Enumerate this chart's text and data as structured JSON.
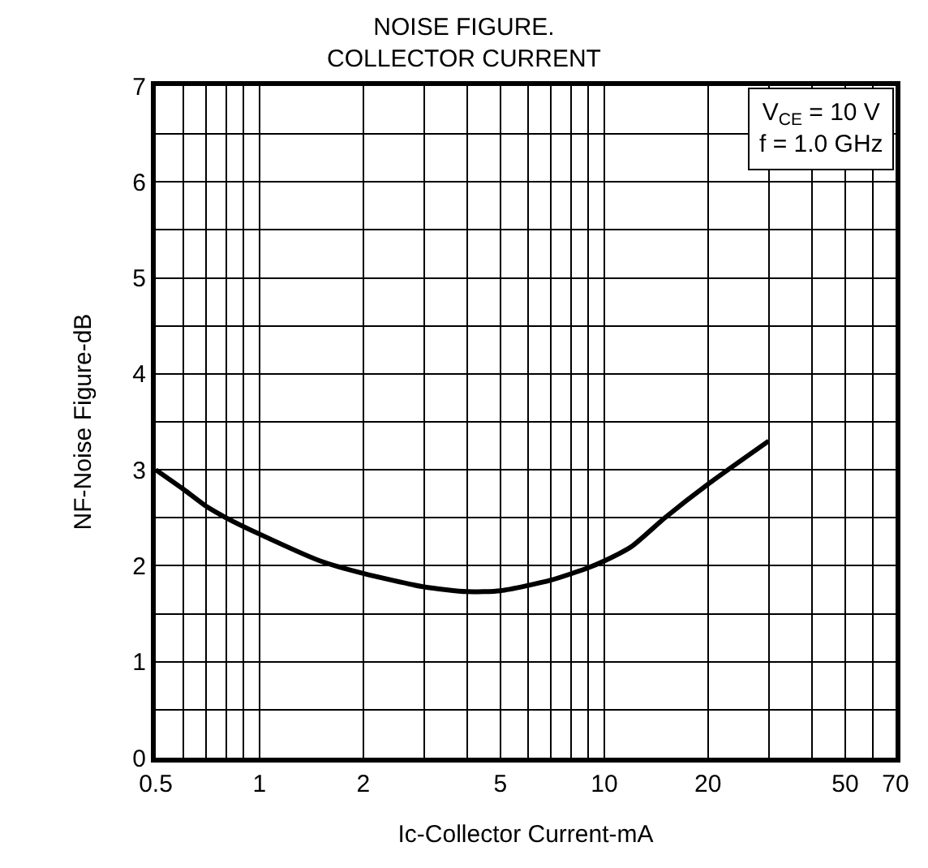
{
  "chart_data": {
    "type": "line",
    "title": "NOISE FIGURE.\nCOLLECTOR CURRENT",
    "xlabel": "Ic-Collector Current-mA",
    "ylabel": "NF-Noise Figure-dB",
    "annotations": [
      "V$_{CE}$ = 10 V\nf = 1.0 GHz"
    ],
    "log": "x",
    "grid": true,
    "marker": "none",
    "line_style": "solid",
    "xlim": [
      0.5,
      70
    ],
    "xticks": [
      0.5,
      {
        "value": 0.6,
        "label": null
      },
      {
        "value": 0.7,
        "label": null
      },
      {
        "value": 0.8,
        "label": null
      },
      {
        "value": 0.9,
        "label": null
      },
      1,
      2,
      {
        "value": 3,
        "label": null
      },
      {
        "value": 4,
        "label": null
      },
      5,
      {
        "value": 6,
        "label": null
      },
      {
        "value": 7,
        "label": null
      },
      {
        "value": 8,
        "label": null
      },
      {
        "value": 9,
        "label": null
      },
      10,
      20,
      {
        "value": 30,
        "label": null
      },
      {
        "value": 40,
        "label": null
      },
      50,
      {
        "value": 60,
        "label": null
      },
      70
    ],
    "ylim": [
      0,
      7
    ],
    "yticks": [
      0,
      {
        "value": 0.5,
        "label": null
      },
      1,
      {
        "value": 1.5,
        "label": null
      },
      2,
      {
        "value": 2.5,
        "label": null
      },
      3,
      {
        "value": 3.5,
        "label": null
      },
      4,
      {
        "value": 4.5,
        "label": null
      },
      5,
      {
        "value": 5.5,
        "label": null
      },
      6,
      {
        "value": 6.5,
        "label": null
      },
      7
    ],
    "series": [
      {
        "color": "#000000",
        "x": [
          0.5,
          0.6,
          0.7,
          0.8,
          1,
          1.5,
          2,
          3,
          4,
          5,
          7,
          9,
          10,
          12,
          15,
          20,
          30
        ],
        "values": [
          3.0,
          2.8,
          2.62,
          2.5,
          2.33,
          2.05,
          1.92,
          1.78,
          1.73,
          1.74,
          1.85,
          1.98,
          2.05,
          2.2,
          2.5,
          2.85,
          3.3
        ]
      }
    ]
  }
}
